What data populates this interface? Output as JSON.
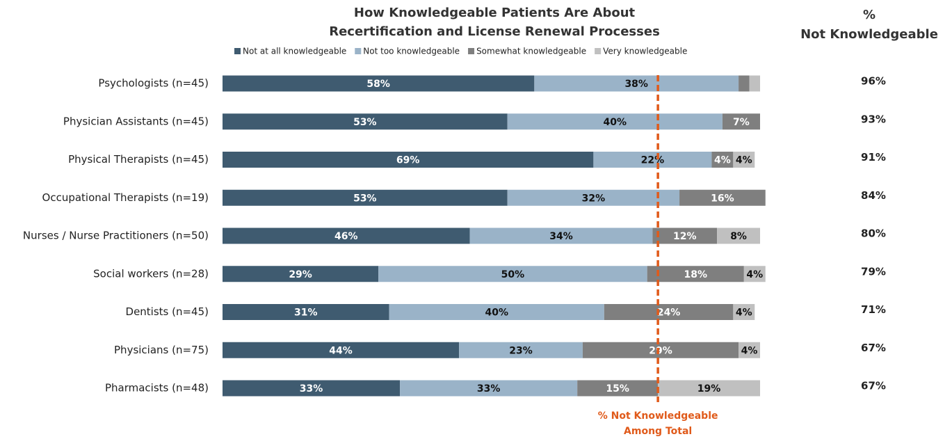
{
  "chart_data": {
    "type": "stacked_barh",
    "title": [
      "How Knowledgeable Patients Are About",
      "Recertification and License Renewal Processes"
    ],
    "categories": [
      "Psychologists (n=45)",
      "Physician Assistants (n=45)",
      "Physical Therapists (n=45)",
      "Occupational Therapists (n=19)",
      "Nurses / Nurse Practitioners (n=50)",
      "Social workers (n=28)",
      "Dentists (n=45)",
      "Physicians (n=75)",
      "Pharmacists (n=48)"
    ],
    "xlim": [
      0,
      100
    ],
    "series": [
      {
        "name": "Not at all knowledgeable",
        "color": "#3f5b70",
        "label_color": "#ffffff",
        "values": [
          58,
          53,
          69,
          53,
          46,
          29,
          31,
          44,
          33
        ],
        "value_labels": [
          "58%",
          "53%",
          "69%",
          "53%",
          "46%",
          "29%",
          "31%",
          "44%",
          "33%"
        ]
      },
      {
        "name": "Not too knowledgeable",
        "color": "#9ab3c8",
        "label_color": "#111111",
        "values": [
          38,
          40,
          22,
          32,
          34,
          50,
          40,
          23,
          33
        ],
        "value_labels": [
          "38%",
          "40%",
          "22%",
          "32%",
          "34%",
          "50%",
          "40%",
          "23%",
          "33%"
        ]
      },
      {
        "name": "Somewhat knowledgeable",
        "color": "#7f7f7f",
        "label_color": "#ffffff",
        "values": [
          2,
          7,
          4,
          16,
          12,
          18,
          24,
          29,
          15
        ],
        "value_labels": [
          null,
          "7%",
          "4%",
          "16%",
          "12%",
          "18%",
          "24%",
          "29%",
          "15%"
        ]
      },
      {
        "name": "Very knowledgeable",
        "color": "#c0c0c0",
        "label_color": "#111111",
        "values": [
          2,
          0,
          4,
          0,
          8,
          4,
          4,
          4,
          19
        ],
        "value_labels": [
          null,
          null,
          "4%",
          null,
          "8%",
          "4%",
          "4%",
          "4%",
          "19%"
        ]
      }
    ],
    "reference_line": {
      "value": 81,
      "color": "#e05a1a",
      "label": [
        "% Not Knowledgeable",
        "Among Total"
      ]
    },
    "side_column": {
      "title": [
        "%",
        "Not Knowledgeable"
      ],
      "values": [
        96,
        93,
        91,
        84,
        80,
        79,
        71,
        67,
        67
      ],
      "value_labels": [
        "96%",
        "93%",
        "91%",
        "84%",
        "80%",
        "79%",
        "71%",
        "67%",
        "67%"
      ]
    }
  }
}
